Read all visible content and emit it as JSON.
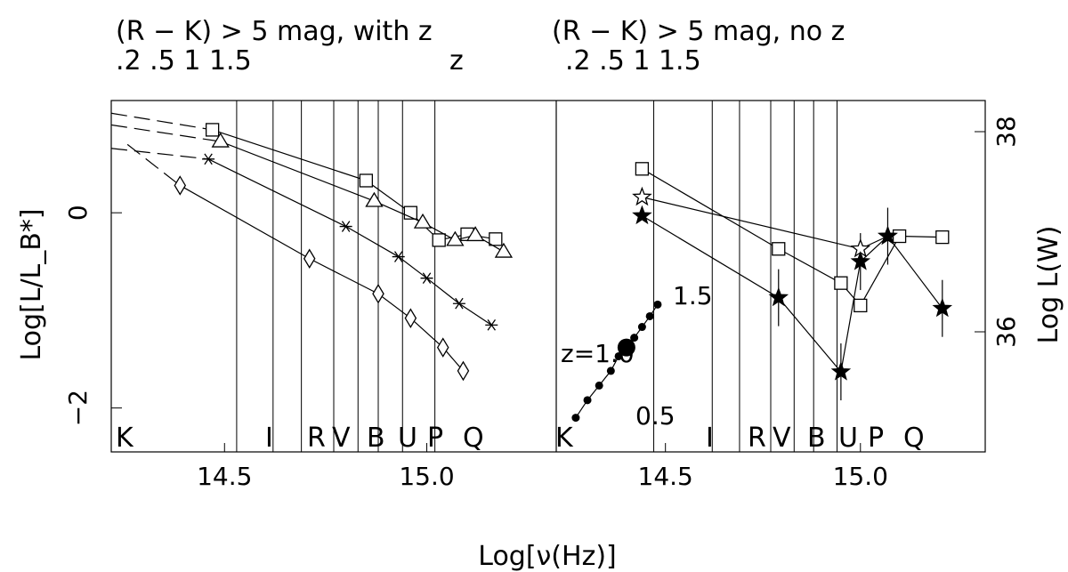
{
  "titles": {
    "left_line1": "(R − K) > 5 mag, with z",
    "right_line1": "(R − K) > 5 mag, no z",
    "left_line2": ".2 .5 1 1.5",
    "mid_line2": "z",
    "right_line2": ".2 .5 1 1.5"
  },
  "axes": {
    "xlabel": "Log[ν(Hz)]",
    "ylabel_left": "Log[L/L_B*]",
    "ylabel_right": "Log L(W)"
  },
  "chart_data": [
    {
      "panel": "left",
      "type": "line",
      "xlim": [
        14.22,
        15.32
      ],
      "ylim": [
        -2.45,
        1.15
      ],
      "x_ticks": [
        "14.5",
        "15.0"
      ],
      "y_ticks_left": [
        "0",
        "−2"
      ],
      "band_labels": [
        "K",
        "I",
        "R",
        "V",
        "B",
        "U",
        "P",
        "Q"
      ],
      "band_x": [
        14.13,
        14.53,
        14.61,
        14.68,
        14.76,
        14.83,
        14.91,
        14.98
      ],
      "series": [
        {
          "marker": "square",
          "x": [
            14.47,
            14.85,
            14.96,
            15.03,
            15.1,
            15.17
          ],
          "y": [
            0.85,
            0.33,
            0.0,
            -0.28,
            -0.22,
            -0.27
          ]
        },
        {
          "marker": "triangle",
          "x": [
            14.49,
            14.87,
            14.99,
            15.07,
            15.12,
            15.19
          ],
          "y": [
            0.73,
            0.12,
            -0.1,
            -0.28,
            -0.23,
            -0.4
          ]
        },
        {
          "marker": "asterisk",
          "x": [
            14.46,
            14.8,
            14.93,
            15.0,
            15.08,
            15.16
          ],
          "y": [
            0.55,
            -0.14,
            -0.45,
            -0.67,
            -0.93,
            -1.15
          ]
        },
        {
          "marker": "diamond",
          "x": [
            14.39,
            14.71,
            14.88,
            14.96,
            15.04,
            15.09
          ],
          "y": [
            0.28,
            -0.47,
            -0.83,
            -1.08,
            -1.38,
            -1.62
          ]
        }
      ],
      "dashed_extrapolations": [
        {
          "x": [
            14.22,
            14.47
          ],
          "y": [
            1.02,
            0.85
          ]
        },
        {
          "x": [
            14.22,
            14.49
          ],
          "y": [
            0.9,
            0.73
          ]
        },
        {
          "x": [
            14.22,
            14.46
          ],
          "y": [
            0.66,
            0.55
          ]
        },
        {
          "x": [
            14.26,
            14.39
          ],
          "y": [
            0.7,
            0.28
          ]
        }
      ]
    },
    {
      "panel": "right",
      "type": "line",
      "xlim": [
        14.22,
        15.32
      ],
      "ylim": [
        -2.45,
        1.15
      ],
      "x_ticks": [
        "14.5",
        "15.0"
      ],
      "y_ticks_right": [
        "38",
        "36"
      ],
      "band_labels": [
        "K",
        "I",
        "R",
        "V",
        "B",
        "U",
        "P",
        "Q"
      ],
      "series": [
        {
          "marker": "square",
          "x": [
            14.44,
            14.79,
            14.95,
            15.0,
            15.1,
            15.21
          ],
          "y": [
            0.45,
            -0.37,
            -0.72,
            -0.95,
            -0.24,
            -0.25
          ]
        },
        {
          "marker": "open-star",
          "x": [
            14.44,
            15.0,
            15.07
          ],
          "y": [
            0.16,
            -0.37,
            -0.24
          ]
        },
        {
          "marker": "filled-star",
          "x": [
            14.44,
            14.79,
            14.95,
            15.0,
            15.07,
            15.21
          ],
          "y": [
            -0.03,
            -0.87,
            -1.63,
            -0.5,
            -0.24,
            -0.98
          ]
        }
      ],
      "redshift_track": {
        "labels": [
          "1.5",
          "z=1.0",
          "0.5"
        ],
        "x": [
          14.27,
          14.3,
          14.33,
          14.36,
          14.38,
          14.4,
          14.42,
          14.44,
          14.46,
          14.48
        ],
        "y": [
          -2.1,
          -1.92,
          -1.77,
          -1.62,
          -1.47,
          -1.38,
          -1.28,
          -1.17,
          -1.06,
          -0.94
        ]
      }
    }
  ]
}
